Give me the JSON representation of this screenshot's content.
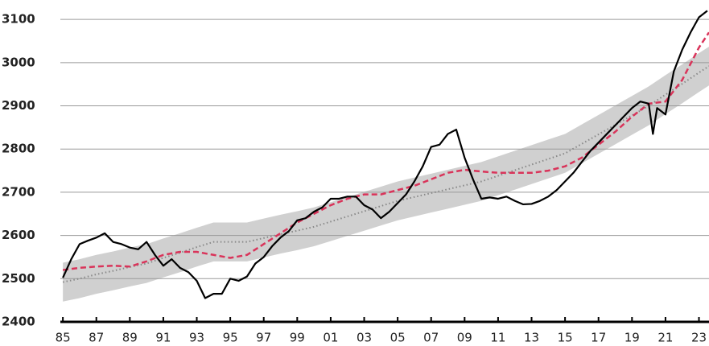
{
  "chart_data": {
    "type": "line",
    "xlim": [
      1984.85,
      2023.6
    ],
    "ylim": [
      2400,
      3145
    ],
    "yticks": [
      2400,
      2500,
      2600,
      2700,
      2800,
      2900,
      3000,
      3100
    ],
    "xticks": [
      {
        "value": 1985,
        "label": "85"
      },
      {
        "value": 1987,
        "label": "87"
      },
      {
        "value": 1989,
        "label": "89"
      },
      {
        "value": 1991,
        "label": "91"
      },
      {
        "value": 1993,
        "label": "93"
      },
      {
        "value": 1995,
        "label": "95"
      },
      {
        "value": 1997,
        "label": "97"
      },
      {
        "value": 1999,
        "label": "99"
      },
      {
        "value": 2001,
        "label": "01"
      },
      {
        "value": 2003,
        "label": "03"
      },
      {
        "value": 2005,
        "label": "05"
      },
      {
        "value": 2007,
        "label": "07"
      },
      {
        "value": 2009,
        "label": "09"
      },
      {
        "value": 2011,
        "label": "11"
      },
      {
        "value": 2013,
        "label": "13"
      },
      {
        "value": 2015,
        "label": "15"
      },
      {
        "value": 2017,
        "label": "17"
      },
      {
        "value": 2019,
        "label": "19"
      },
      {
        "value": 2021,
        "label": "21"
      },
      {
        "value": 2023,
        "label": "23"
      }
    ],
    "grid": true,
    "band": {
      "color": "#d0d0d0",
      "x": [
        1985,
        1986,
        1987,
        1988,
        1989,
        1990,
        1991,
        1992,
        1993,
        1994,
        1995,
        1996,
        1997,
        1998,
        1999,
        2000,
        2001,
        2002,
        2003,
        2004,
        2005,
        2006,
        2007,
        2008,
        2009,
        2010,
        2011,
        2012,
        2013,
        2014,
        2015,
        2016,
        2017,
        2018,
        2019,
        2020,
        2021,
        2022,
        2023,
        2023.6
      ],
      "lower": [
        2447,
        2455,
        2465,
        2473,
        2482,
        2490,
        2503,
        2515,
        2528,
        2540,
        2540,
        2540,
        2549,
        2558,
        2566,
        2575,
        2587,
        2599,
        2611,
        2623,
        2635,
        2644,
        2653,
        2662,
        2671,
        2680,
        2693,
        2706,
        2719,
        2732,
        2745,
        2767,
        2789,
        2811,
        2833,
        2855,
        2881,
        2906,
        2932,
        2947
      ],
      "upper": [
        2537,
        2545,
        2555,
        2563,
        2572,
        2580,
        2593,
        2605,
        2618,
        2630,
        2630,
        2630,
        2639,
        2648,
        2656,
        2665,
        2677,
        2689,
        2701,
        2713,
        2725,
        2734,
        2743,
        2752,
        2761,
        2770,
        2783,
        2796,
        2809,
        2822,
        2835,
        2857,
        2879,
        2901,
        2923,
        2945,
        2971,
        2996,
        3022,
        3037
      ]
    },
    "series": [
      {
        "color": "#888888",
        "dash": "dotted",
        "x": [
          1985,
          1986,
          1987,
          1988,
          1989,
          1990,
          1991,
          1992,
          1993,
          1994,
          1995,
          1996,
          1997,
          1998,
          1999,
          2000,
          2001,
          2002,
          2003,
          2004,
          2005,
          2006,
          2007,
          2008,
          2009,
          2010,
          2011,
          2012,
          2013,
          2014,
          2015,
          2016,
          2017,
          2018,
          2019,
          2020,
          2021,
          2022,
          2023,
          2023.6
        ],
        "values": [
          2492,
          2500,
          2510,
          2518,
          2527,
          2535,
          2548,
          2560,
          2573,
          2585,
          2585,
          2585,
          2594,
          2603,
          2611,
          2620,
          2632,
          2644,
          2656,
          2668,
          2680,
          2689,
          2698,
          2707,
          2716,
          2725,
          2738,
          2751,
          2764,
          2777,
          2790,
          2812,
          2834,
          2856,
          2878,
          2900,
          2926,
          2951,
          2977,
          2992
        ]
      },
      {
        "color": "#d9345a",
        "dash": "dashed",
        "x": [
          1985,
          1986,
          1987,
          1988,
          1989,
          1990,
          1991,
          1992,
          1993,
          1994,
          1995,
          1996,
          1997,
          1998,
          1999,
          2000,
          2001,
          2002,
          2003,
          2004,
          2005,
          2006,
          2007,
          2008,
          2009,
          2010,
          2011,
          2012,
          2013,
          2014,
          2015,
          2016,
          2017,
          2018,
          2019,
          2020,
          2021,
          2022,
          2023,
          2023.6
        ],
        "values": [
          2520,
          2525,
          2528,
          2530,
          2528,
          2540,
          2555,
          2562,
          2562,
          2555,
          2548,
          2555,
          2580,
          2605,
          2630,
          2650,
          2670,
          2685,
          2695,
          2695,
          2705,
          2715,
          2730,
          2745,
          2752,
          2748,
          2745,
          2745,
          2745,
          2750,
          2760,
          2780,
          2810,
          2840,
          2875,
          2905,
          2910,
          2960,
          3035,
          3070
        ]
      },
      {
        "color": "#000000",
        "dash": "solid",
        "x": [
          1985,
          1985.5,
          1986,
          1986.5,
          1987,
          1987.5,
          1988,
          1988.5,
          1989,
          1989.5,
          1990,
          1990.5,
          1991,
          1991.5,
          1992,
          1992.5,
          1993,
          1993.5,
          1994,
          1994.5,
          1995,
          1995.5,
          1996,
          1996.5,
          1997,
          1997.5,
          1998,
          1998.5,
          1999,
          1999.5,
          2000,
          2000.5,
          2001,
          2001.5,
          2002,
          2002.5,
          2003,
          2003.5,
          2004,
          2004.5,
          2005,
          2005.5,
          2006,
          2006.5,
          2007,
          2007.5,
          2008,
          2008.5,
          2009,
          2009.5,
          2010,
          2010.5,
          2011,
          2011.5,
          2012,
          2012.5,
          2013,
          2013.5,
          2014,
          2014.5,
          2015,
          2015.5,
          2016,
          2016.5,
          2017,
          2017.5,
          2018,
          2018.5,
          2019,
          2019.5,
          2020,
          2020.25,
          2020.5,
          2021,
          2021.5,
          2022,
          2022.5,
          2023,
          2023.5
        ],
        "values": [
          2502,
          2545,
          2580,
          2588,
          2595,
          2605,
          2585,
          2580,
          2572,
          2568,
          2585,
          2555,
          2530,
          2545,
          2525,
          2515,
          2495,
          2455,
          2465,
          2465,
          2500,
          2495,
          2505,
          2535,
          2550,
          2575,
          2595,
          2610,
          2635,
          2640,
          2655,
          2665,
          2685,
          2685,
          2690,
          2690,
          2670,
          2660,
          2640,
          2655,
          2675,
          2695,
          2725,
          2760,
          2805,
          2810,
          2835,
          2845,
          2780,
          2730,
          2685,
          2688,
          2685,
          2690,
          2680,
          2672,
          2673,
          2680,
          2690,
          2705,
          2725,
          2745,
          2770,
          2795,
          2815,
          2835,
          2855,
          2875,
          2895,
          2910,
          2905,
          2835,
          2895,
          2880,
          2980,
          3030,
          3070,
          3105,
          3120
        ]
      }
    ]
  }
}
